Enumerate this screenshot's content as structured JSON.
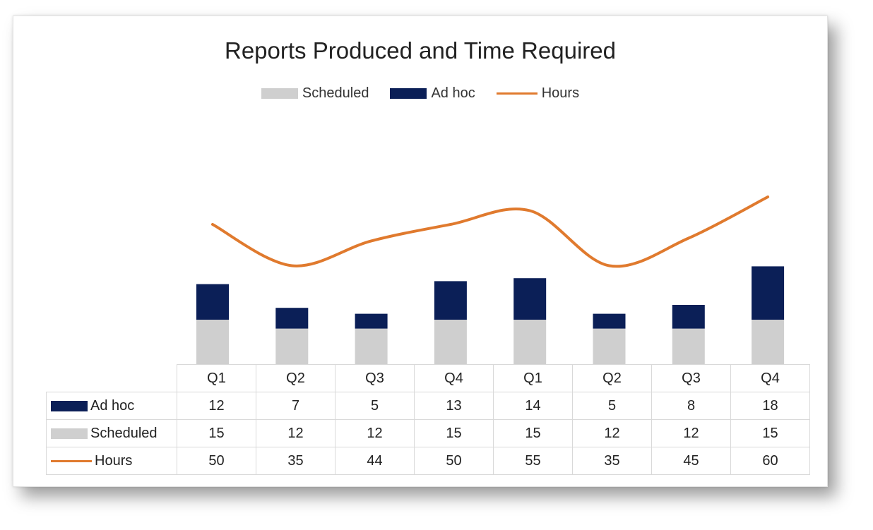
{
  "chart_data": {
    "type": "bar",
    "title": "Reports Produced and Time Required",
    "categories": [
      "Q1",
      "Q2",
      "Q3",
      "Q4",
      "Q1",
      "Q2",
      "Q3",
      "Q4"
    ],
    "stacked": true,
    "series": [
      {
        "name": "Scheduled",
        "type": "bar",
        "color": "#cfcfcf",
        "values": [
          15,
          12,
          12,
          15,
          15,
          12,
          12,
          15
        ]
      },
      {
        "name": "Ad hoc",
        "type": "bar",
        "color": "#0b1f57",
        "values": [
          12,
          7,
          5,
          13,
          14,
          5,
          8,
          18
        ]
      },
      {
        "name": "Hours",
        "type": "line",
        "smooth": true,
        "color": "#e07a2e",
        "values": [
          50,
          35,
          44,
          50,
          55,
          35,
          45,
          60
        ]
      }
    ],
    "legend_position": "top",
    "data_table": true,
    "table_rows": [
      {
        "name": "Ad hoc",
        "values": [
          12,
          7,
          5,
          13,
          14,
          5,
          8,
          18
        ]
      },
      {
        "name": "Scheduled",
        "values": [
          15,
          12,
          12,
          15,
          15,
          12,
          12,
          15
        ]
      },
      {
        "name": "Hours",
        "values": [
          50,
          35,
          44,
          50,
          55,
          35,
          45,
          60
        ]
      }
    ],
    "grid": false,
    "axes_visible": false
  }
}
